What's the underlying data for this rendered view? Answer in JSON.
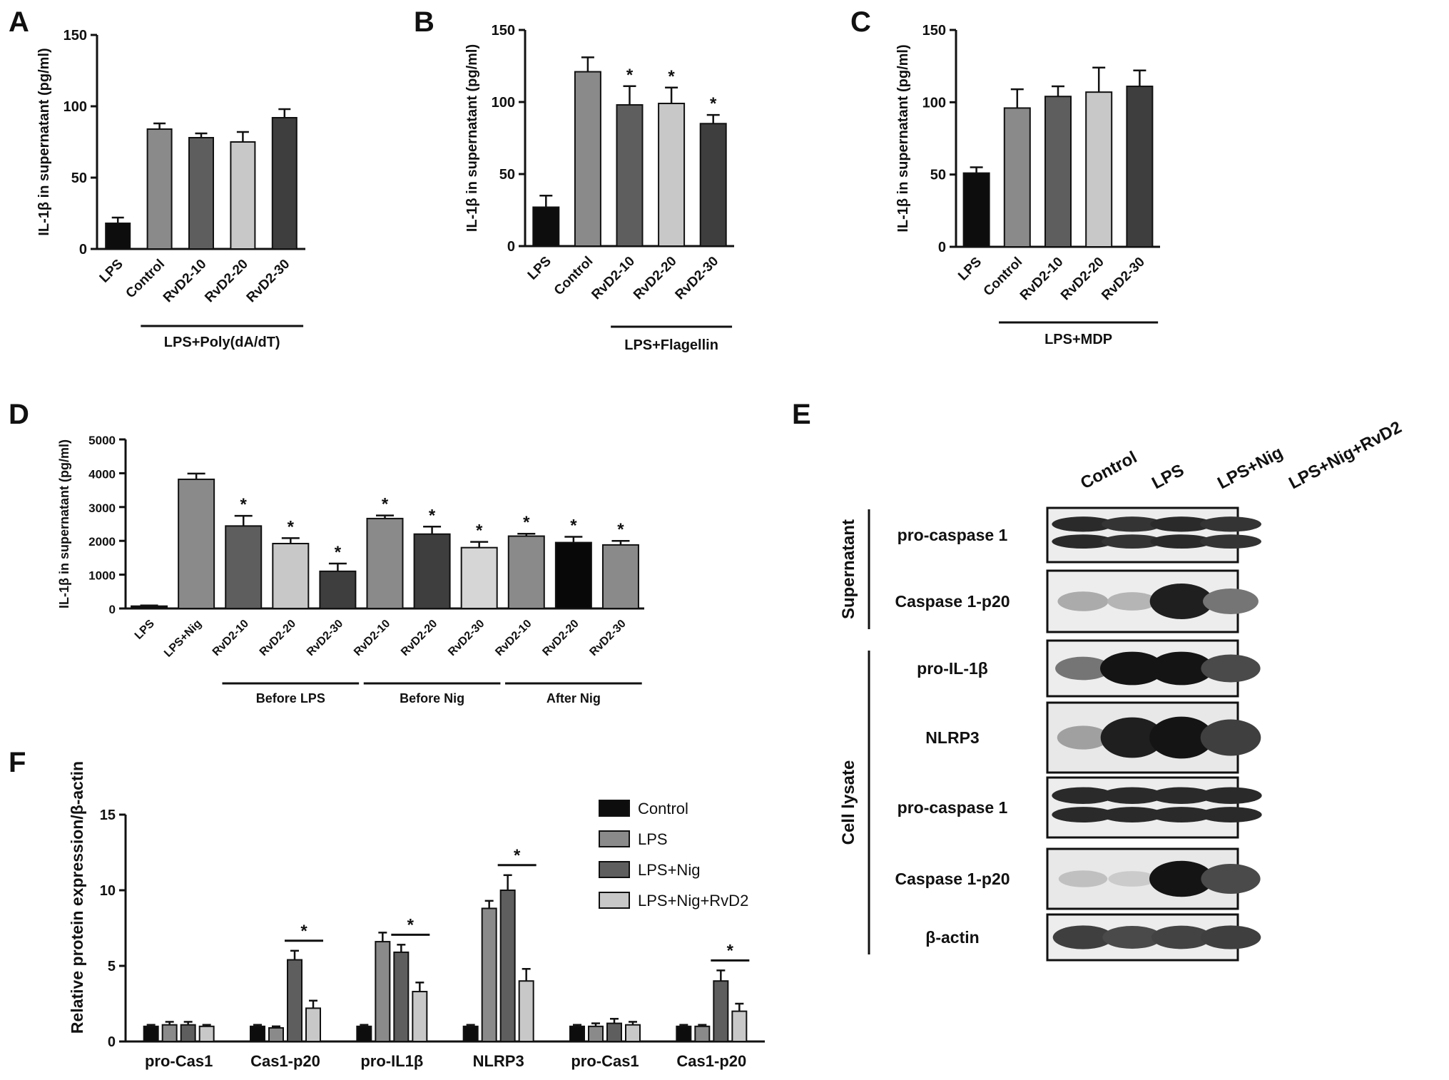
{
  "panel_letters": [
    "A",
    "B",
    "C",
    "D",
    "E",
    "F"
  ],
  "chart_data": [
    {
      "panel": "A",
      "type": "bar",
      "ylabel": "IL-1β in supernatant (pg/ml)",
      "ylim": [
        0,
        150
      ],
      "yticks": [
        "0",
        "50",
        "100",
        "150"
      ],
      "categories": [
        "LPS",
        "Control",
        "RvD2-10",
        "RvD2-20",
        "RvD2-30"
      ],
      "values": [
        18,
        84,
        78,
        75,
        92
      ],
      "errors": [
        4,
        4,
        3,
        7,
        6
      ],
      "colors": [
        "#0d0d0d",
        "#8a8a8a",
        "#5e5e5e",
        "#c8c8c8",
        "#3e3e3e"
      ],
      "significant": [
        false,
        false,
        false,
        false,
        false
      ],
      "group_label": "LPS+Poly(dA/dT)",
      "group_span": [
        "Control",
        "RvD2-30"
      ]
    },
    {
      "panel": "B",
      "type": "bar",
      "ylabel": "IL-1β in supernatant (pg/ml)",
      "ylim": [
        0,
        150
      ],
      "yticks": [
        "0",
        "50",
        "100",
        "150"
      ],
      "categories": [
        "LPS",
        "Control",
        "RvD2-10",
        "RvD2-20",
        "RvD2-30"
      ],
      "values": [
        27,
        121,
        98,
        99,
        85
      ],
      "errors": [
        8,
        10,
        13,
        11,
        6
      ],
      "colors": [
        "#0d0d0d",
        "#8a8a8a",
        "#5e5e5e",
        "#c8c8c8",
        "#3e3e3e"
      ],
      "significant": [
        false,
        false,
        true,
        true,
        true
      ],
      "group_label": "LPS+Flagellin",
      "group_span": [
        "RvD2-10",
        "RvD2-30"
      ]
    },
    {
      "panel": "C",
      "type": "bar",
      "ylabel": "IL-1β in supernatant (pg/ml)",
      "ylim": [
        0,
        150
      ],
      "yticks": [
        "0",
        "50",
        "100",
        "150"
      ],
      "categories": [
        "LPS",
        "Control",
        "RvD2-10",
        "RvD2-20",
        "RvD2-30"
      ],
      "values": [
        51,
        96,
        104,
        107,
        111
      ],
      "errors": [
        4,
        13,
        7,
        17,
        11
      ],
      "colors": [
        "#0d0d0d",
        "#8a8a8a",
        "#5e5e5e",
        "#c8c8c8",
        "#3e3e3e"
      ],
      "significant": [
        false,
        false,
        false,
        false,
        false
      ],
      "group_label": "LPS+MDP",
      "group_span": [
        "Control",
        "RvD2-30"
      ]
    },
    {
      "panel": "D",
      "type": "bar",
      "ylabel": "IL-1β in supernatant (pg/ml)",
      "ylim": [
        0,
        5000
      ],
      "yticks": [
        "0",
        "1000",
        "2000",
        "3000",
        "4000",
        "5000"
      ],
      "categories": [
        "LPS",
        "LPS+Nig",
        "RvD2-10",
        "RvD2-20",
        "RvD2-30",
        "RvD2-10",
        "RvD2-20",
        "RvD2-30",
        "RvD2-10",
        "RvD2-20",
        "RvD2-30"
      ],
      "values": [
        70,
        3820,
        2440,
        1920,
        1100,
        2660,
        2200,
        1800,
        2140,
        1950,
        1880
      ],
      "errors": [
        20,
        170,
        300,
        160,
        230,
        90,
        220,
        170,
        70,
        170,
        120
      ],
      "colors": [
        "#0d0d0d",
        "#8a8a8a",
        "#5e5e5e",
        "#c8c8c8",
        "#3e3e3e",
        "#8a8a8a",
        "#3e3e3e",
        "#d6d6d6",
        "#8a8a8a",
        "#080808",
        "#8a8a8a"
      ],
      "significant": [
        false,
        false,
        true,
        true,
        true,
        true,
        true,
        true,
        true,
        true,
        true
      ],
      "groups": [
        {
          "label": "Before LPS",
          "from": 2,
          "to": 4
        },
        {
          "label": "Before Nig",
          "from": 5,
          "to": 7
        },
        {
          "label": "After Nig",
          "from": 8,
          "to": 10
        }
      ]
    },
    {
      "panel": "F",
      "type": "bar",
      "title": "",
      "ylabel": "Relative protein expression/β-actin",
      "ylim": [
        0,
        15
      ],
      "yticks": [
        "0",
        "5",
        "10",
        "15"
      ],
      "categories": [
        "pro-Cas1",
        "Cas1-p20",
        "pro-IL1β",
        "NLRP3",
        "pro-Cas1",
        "Cas1-p20"
      ],
      "series": [
        {
          "name": "Control",
          "color": "#0d0d0d",
          "values": [
            1.0,
            1.0,
            1.0,
            1.0,
            1.0,
            1.0
          ],
          "errors": [
            0.1,
            0.1,
            0.1,
            0.1,
            0.1,
            0.1
          ]
        },
        {
          "name": "LPS",
          "color": "#8a8a8a",
          "values": [
            1.1,
            0.9,
            6.6,
            8.8,
            1.0,
            1.0
          ],
          "errors": [
            0.2,
            0.1,
            0.6,
            0.5,
            0.2,
            0.1
          ]
        },
        {
          "name": "LPS+Nig",
          "color": "#5e5e5e",
          "values": [
            1.1,
            5.4,
            5.9,
            10.0,
            1.2,
            4.0
          ],
          "errors": [
            0.2,
            0.6,
            0.5,
            1.0,
            0.3,
            0.7
          ]
        },
        {
          "name": "LPS+Nig+RvD2",
          "color": "#c8c8c8",
          "values": [
            1.0,
            2.2,
            3.3,
            4.0,
            1.1,
            2.0
          ],
          "errors": [
            0.1,
            0.5,
            0.6,
            0.8,
            0.2,
            0.5
          ]
        }
      ],
      "significance_bars": [
        1,
        2,
        3,
        5
      ],
      "legend_position": "top-right"
    }
  ],
  "blot": {
    "lanes": [
      "Control",
      "LPS",
      "LPS+Nig",
      "LPS+Nig+RvD2"
    ],
    "section_labels": [
      "Supernatant",
      "Cell lysate"
    ],
    "rows": [
      {
        "label": "pro-caspase 1",
        "section": 0,
        "kind": "double",
        "intensity": [
          0.9,
          0.85,
          0.9,
          0.85
        ]
      },
      {
        "label": "Caspase 1-p20",
        "section": 0,
        "kind": "single",
        "intensity": [
          0.3,
          0.25,
          0.95,
          0.55
        ]
      },
      {
        "label": "pro-IL-1β",
        "section": 1,
        "kind": "single",
        "intensity": [
          0.55,
          1.0,
          1.0,
          0.75
        ]
      },
      {
        "label": "NLRP3",
        "section": 1,
        "kind": "noisy",
        "intensity": [
          0.35,
          0.95,
          1.0,
          0.8
        ]
      },
      {
        "label": "pro-caspase 1",
        "section": 1,
        "kind": "double",
        "intensity": [
          0.9,
          0.9,
          0.9,
          0.9
        ]
      },
      {
        "label": "Caspase 1-p20",
        "section": 1,
        "kind": "noisy",
        "intensity": [
          0.2,
          0.15,
          1.0,
          0.75
        ]
      },
      {
        "label": "β-actin",
        "section": 1,
        "kind": "single",
        "intensity": [
          0.8,
          0.75,
          0.78,
          0.8
        ]
      }
    ]
  }
}
